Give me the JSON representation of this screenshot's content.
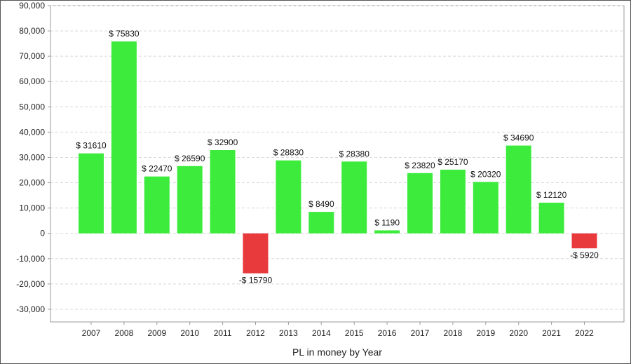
{
  "chart_data": {
    "type": "bar",
    "title": "",
    "xlabel": "PL in money by Year",
    "ylabel": "",
    "ylim": [
      -35000,
      90000
    ],
    "yticks": [
      -30000,
      -20000,
      -10000,
      0,
      10000,
      20000,
      30000,
      40000,
      50000,
      60000,
      70000,
      80000,
      90000
    ],
    "ytick_labels": [
      "-30,000",
      "-20,000",
      "-10,000",
      "0",
      "10,000",
      "20,000",
      "30,000",
      "40,000",
      "50,000",
      "60,000",
      "70,000",
      "80,000",
      "90,000"
    ],
    "grid": true,
    "categories": [
      "2007",
      "2008",
      "2009",
      "2010",
      "2011",
      "2012",
      "2013",
      "2014",
      "2015",
      "2016",
      "2017",
      "2018",
      "2019",
      "2020",
      "2021",
      "2022"
    ],
    "values": [
      31610,
      75830,
      22470,
      26590,
      32900,
      -15790,
      28830,
      8490,
      28380,
      1190,
      23820,
      25170,
      20320,
      34690,
      12120,
      -5920
    ],
    "data_labels": [
      "$ 31610",
      "$ 75830",
      "$ 22470",
      "$ 26590",
      "$ 32900",
      "-$ 15790",
      "$ 28830",
      "$ 8490",
      "$ 28380",
      "$ 1190",
      "$ 23820",
      "$ 25170",
      "$ 20320",
      "$ 34690",
      "$ 12120",
      "-$ 5920"
    ],
    "colors": {
      "positive": "#3deb3d",
      "negative": "#e8393d",
      "grid": "#d8d8d8",
      "axis": "#999999"
    }
  }
}
